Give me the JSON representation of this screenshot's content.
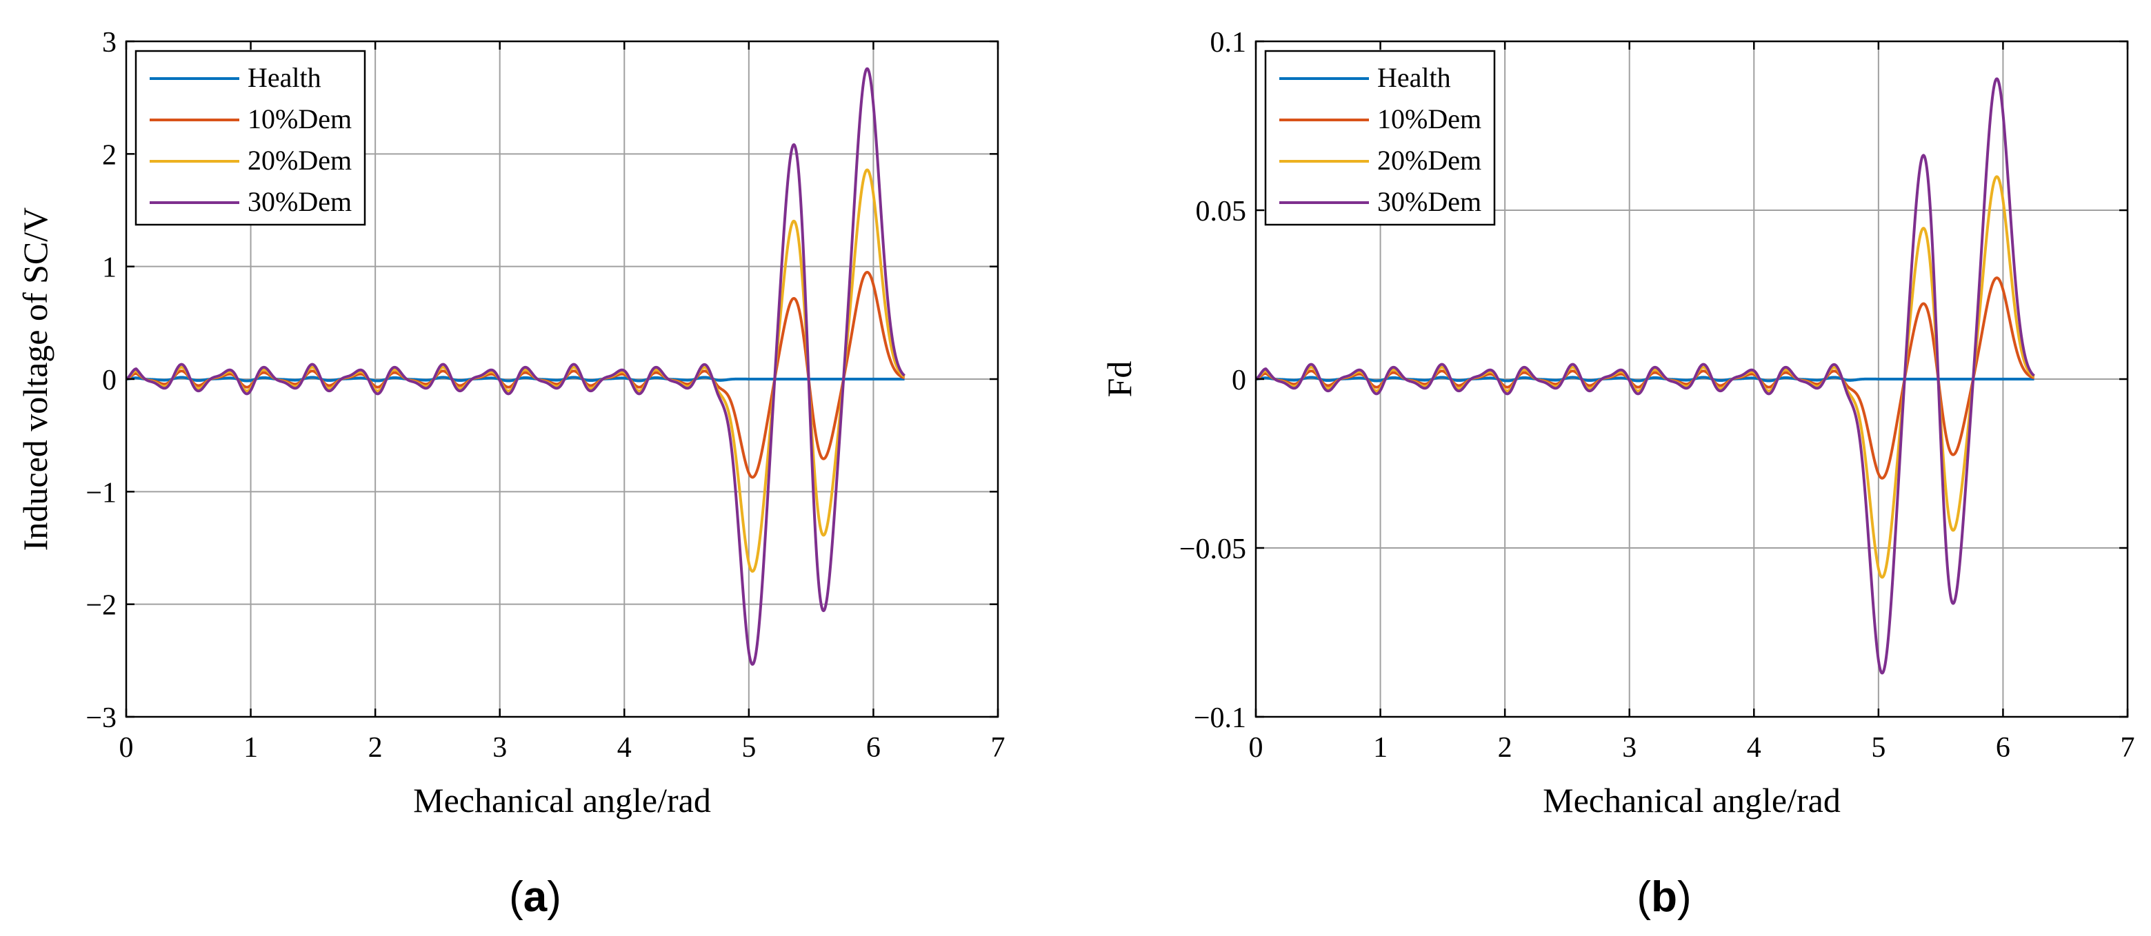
{
  "chart_data": [
    {
      "type": "line",
      "panel_label": "a",
      "xlabel": "Mechanical angle/rad",
      "ylabel": "Induced voltage of SC/V",
      "xlim": [
        0,
        7
      ],
      "ylim": [
        -3,
        3
      ],
      "xticks": [
        0,
        1,
        2,
        3,
        4,
        5,
        6,
        7
      ],
      "yticks": [
        -3,
        -2,
        -1,
        0,
        1,
        2,
        3
      ],
      "xtick_labels": [
        "0",
        "1",
        "2",
        "3",
        "4",
        "5",
        "6",
        "7"
      ],
      "ytick_labels": [
        "−3",
        "−2",
        "−1",
        "0",
        "1",
        "2",
        "3"
      ],
      "grid": true,
      "legend_position": "top-left",
      "x_end": 6.25,
      "ripple_amplitude": 0.12,
      "peaks": [
        {
          "x": 5.03,
          "relative": -0.92
        },
        {
          "x": 5.38,
          "relative": 0.85
        },
        {
          "x": 5.58,
          "relative": -0.84
        },
        {
          "x": 5.95,
          "relative": 1.0
        }
      ],
      "series": [
        {
          "name": "Health",
          "color": "#0072BD",
          "scale": 0.0,
          "ripple_scale": 0.12
        },
        {
          "name": "10%Dem",
          "color": "#D95319",
          "scale": 0.95,
          "ripple_scale": 0.55
        },
        {
          "name": "20%Dem",
          "color": "#EDB120",
          "scale": 1.86,
          "ripple_scale": 0.8
        },
        {
          "name": "30%Dem",
          "color": "#7E2F8E",
          "scale": 2.76,
          "ripple_scale": 1.0
        }
      ]
    },
    {
      "type": "line",
      "panel_label": "b",
      "xlabel": "Mechanical angle/rad",
      "ylabel": "Fd",
      "xlim": [
        0,
        7
      ],
      "ylim": [
        -0.1,
        0.1
      ],
      "xticks": [
        0,
        1,
        2,
        3,
        4,
        5,
        6,
        7
      ],
      "yticks": [
        -0.1,
        -0.05,
        0,
        0.05,
        0.1
      ],
      "xtick_labels": [
        "0",
        "1",
        "2",
        "3",
        "4",
        "5",
        "6",
        "7"
      ],
      "ytick_labels": [
        "−0.1",
        "−0.05",
        "0",
        "0.05",
        "0.1"
      ],
      "grid": true,
      "legend_position": "top-left",
      "x_end": 6.25,
      "ripple_amplitude": 0.004,
      "peaks": [
        {
          "x": 5.03,
          "relative": -0.98
        },
        {
          "x": 5.38,
          "relative": 0.84
        },
        {
          "x": 5.58,
          "relative": -0.84
        },
        {
          "x": 5.95,
          "relative": 1.0
        }
      ],
      "series": [
        {
          "name": "Health",
          "color": "#0072BD",
          "scale": 0.0,
          "ripple_scale": 0.12
        },
        {
          "name": "10%Dem",
          "color": "#D95319",
          "scale": 0.03,
          "ripple_scale": 0.55
        },
        {
          "name": "20%Dem",
          "color": "#EDB120",
          "scale": 0.06,
          "ripple_scale": 0.8
        },
        {
          "name": "30%Dem",
          "color": "#7E2F8E",
          "scale": 0.089,
          "ripple_scale": 1.0
        }
      ]
    }
  ]
}
